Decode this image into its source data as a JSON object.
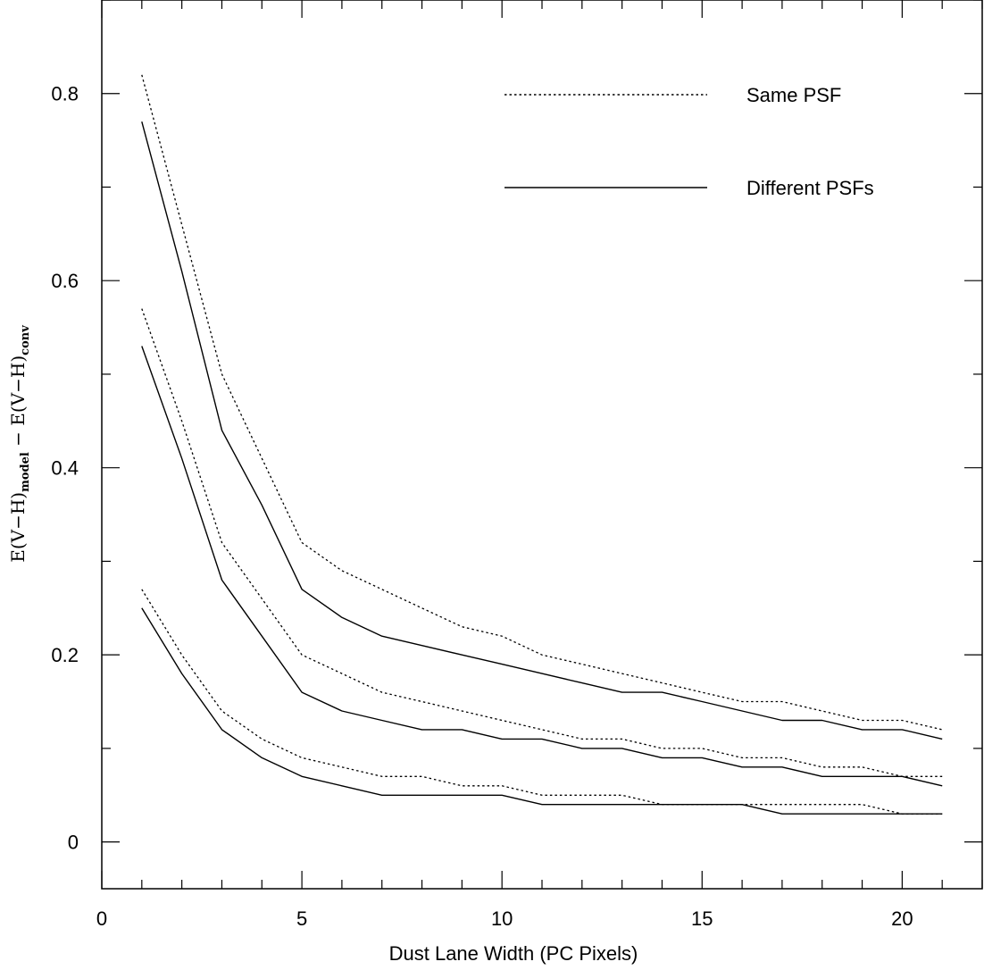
{
  "chart_data": {
    "type": "line",
    "xlabel": "Dust Lane Width (PC Pixels)",
    "ylabel": {
      "main1": "E(V−H)",
      "sub1": "model",
      "sep": " − ",
      "main2": "E(V−H)",
      "sub2": "conv"
    },
    "xlim": [
      0,
      22
    ],
    "ylim": [
      -0.05,
      0.9
    ],
    "x_ticks": [
      0,
      5,
      10,
      15,
      20
    ],
    "x_tick_labels": [
      "0",
      "5",
      "10",
      "15",
      "20"
    ],
    "y_ticks": [
      0,
      0.2,
      0.4,
      0.6,
      0.8
    ],
    "y_tick_labels": [
      "0",
      "0.2",
      "0.4",
      "0.6",
      "0.8"
    ],
    "x_minor_step": 1,
    "y_minor_step": 0.1,
    "grid": false,
    "legend_position": "top-right",
    "legend": [
      {
        "label": "Same PSF",
        "style": "dotted"
      },
      {
        "label": "Different PSFs",
        "style": "solid"
      }
    ],
    "series": [
      {
        "style": "dotted",
        "x": [
          1,
          2,
          3,
          4,
          5,
          6,
          7,
          8,
          9,
          10,
          11,
          12,
          13,
          14,
          15,
          16,
          17,
          18,
          19,
          20,
          21
        ],
        "y": [
          0.82,
          0.66,
          0.5,
          0.41,
          0.32,
          0.29,
          0.27,
          0.25,
          0.23,
          0.22,
          0.2,
          0.19,
          0.18,
          0.17,
          0.16,
          0.15,
          0.15,
          0.14,
          0.13,
          0.13,
          0.12
        ]
      },
      {
        "style": "solid",
        "x": [
          1,
          2,
          3,
          4,
          5,
          6,
          7,
          8,
          9,
          10,
          11,
          12,
          13,
          14,
          15,
          16,
          17,
          18,
          19,
          20,
          21
        ],
        "y": [
          0.77,
          0.61,
          0.44,
          0.36,
          0.27,
          0.24,
          0.22,
          0.21,
          0.2,
          0.19,
          0.18,
          0.17,
          0.16,
          0.16,
          0.15,
          0.14,
          0.13,
          0.13,
          0.12,
          0.12,
          0.11
        ]
      },
      {
        "style": "dotted",
        "x": [
          1,
          2,
          3,
          4,
          5,
          6,
          7,
          8,
          9,
          10,
          11,
          12,
          13,
          14,
          15,
          16,
          17,
          18,
          19,
          20,
          21
        ],
        "y": [
          0.57,
          0.45,
          0.32,
          0.26,
          0.2,
          0.18,
          0.16,
          0.15,
          0.14,
          0.13,
          0.12,
          0.11,
          0.11,
          0.1,
          0.1,
          0.09,
          0.09,
          0.08,
          0.08,
          0.07,
          0.07
        ]
      },
      {
        "style": "solid",
        "x": [
          1,
          2,
          3,
          4,
          5,
          6,
          7,
          8,
          9,
          10,
          11,
          12,
          13,
          14,
          15,
          16,
          17,
          18,
          19,
          20,
          21
        ],
        "y": [
          0.53,
          0.41,
          0.28,
          0.22,
          0.16,
          0.14,
          0.13,
          0.12,
          0.12,
          0.11,
          0.11,
          0.1,
          0.1,
          0.09,
          0.09,
          0.08,
          0.08,
          0.07,
          0.07,
          0.07,
          0.06
        ]
      },
      {
        "style": "dotted",
        "x": [
          1,
          2,
          3,
          4,
          5,
          6,
          7,
          8,
          9,
          10,
          11,
          12,
          13,
          14,
          15,
          16,
          17,
          18,
          19,
          20,
          21
        ],
        "y": [
          0.27,
          0.2,
          0.14,
          0.11,
          0.09,
          0.08,
          0.07,
          0.07,
          0.06,
          0.06,
          0.05,
          0.05,
          0.05,
          0.04,
          0.04,
          0.04,
          0.04,
          0.04,
          0.04,
          0.03,
          0.03
        ]
      },
      {
        "style": "solid",
        "x": [
          1,
          2,
          3,
          4,
          5,
          6,
          7,
          8,
          9,
          10,
          11,
          12,
          13,
          14,
          15,
          16,
          17,
          18,
          19,
          20,
          21
        ],
        "y": [
          0.25,
          0.18,
          0.12,
          0.09,
          0.07,
          0.06,
          0.05,
          0.05,
          0.05,
          0.05,
          0.04,
          0.04,
          0.04,
          0.04,
          0.04,
          0.04,
          0.03,
          0.03,
          0.03,
          0.03,
          0.03
        ]
      }
    ]
  }
}
